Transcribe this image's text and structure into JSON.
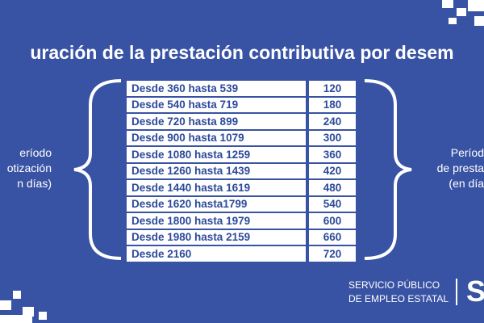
{
  "title": "uración de la prestación contributiva por desem",
  "left_label": [
    "eríodo",
    "otización",
    "n días)"
  ],
  "right_label": [
    "Períod",
    "de presta",
    "(en día"
  ],
  "table": {
    "rows": [
      [
        "Desde 360 hasta 539",
        "120"
      ],
      [
        "Desde 540 hasta 719",
        "180"
      ],
      [
        "Desde 720 hasta 899",
        "240"
      ],
      [
        "Desde 900 hasta 1079",
        "300"
      ],
      [
        "Desde 1080 hasta 1259",
        "360"
      ],
      [
        "Desde 1260 hasta 1439",
        "420"
      ],
      [
        "Desde 1440 hasta 1619",
        "480"
      ],
      [
        "Desde 1620 hasta1799",
        "540"
      ],
      [
        "Desde 1800 hasta 1979",
        "600"
      ],
      [
        "Desde 1980 hasta 2159",
        "660"
      ],
      [
        "Desde 2160",
        "720"
      ]
    ]
  },
  "footer": [
    "SERVICIO PÚBLICO",
    "DE EMPLEO ESTATAL"
  ],
  "logo": "S"
}
